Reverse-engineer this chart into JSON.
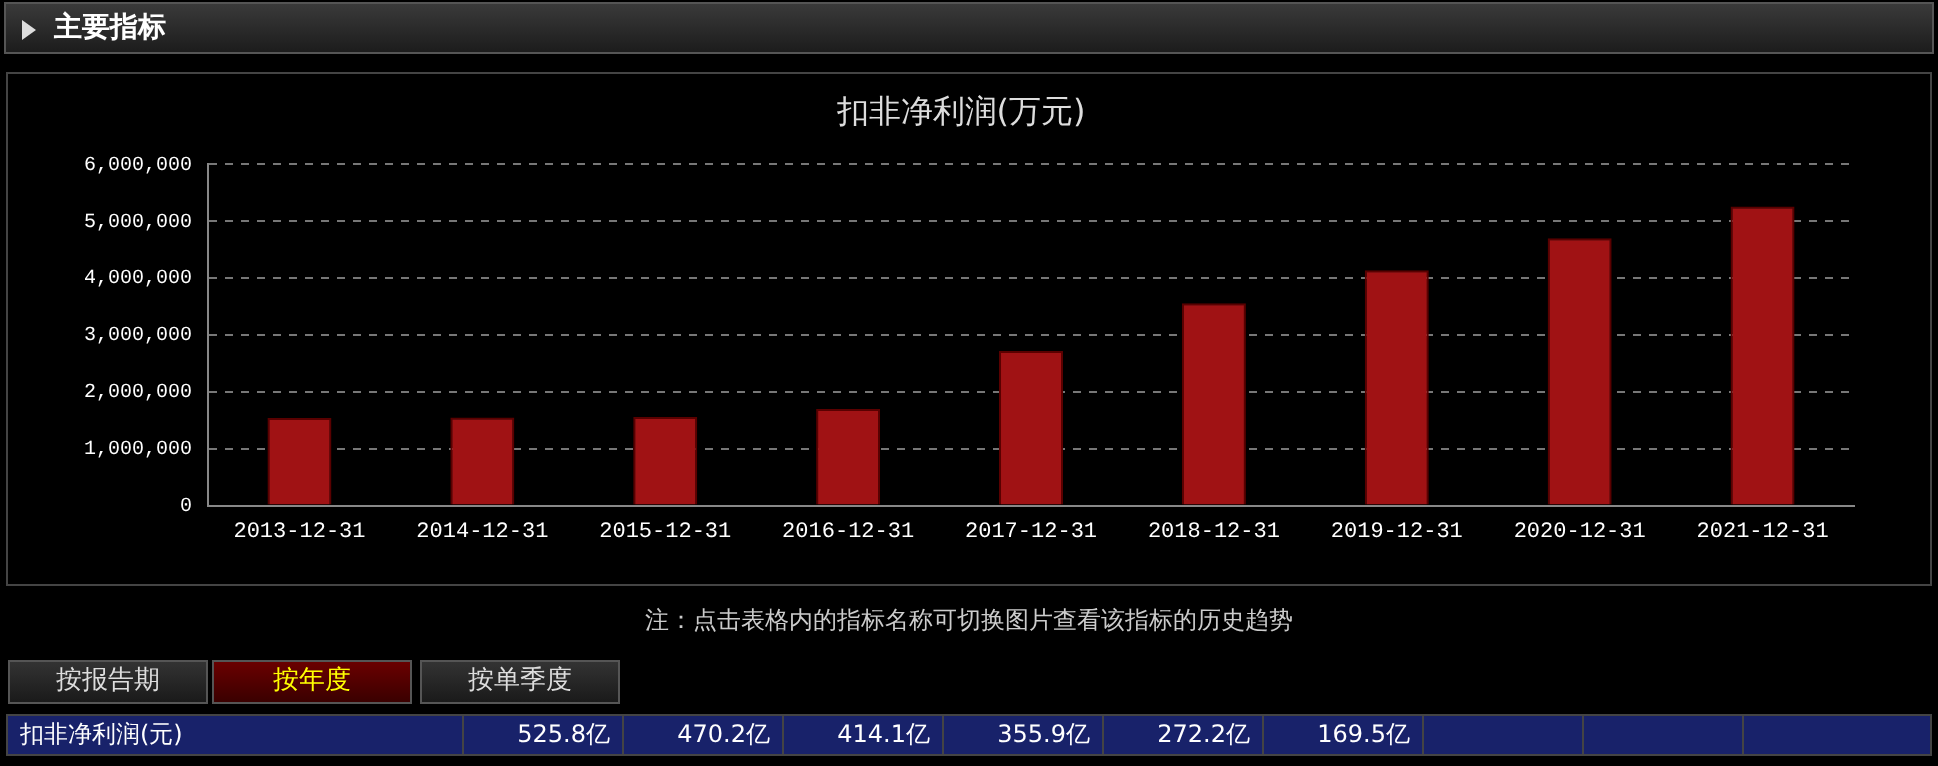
{
  "chart_data": {
    "type": "bar",
    "title": "扣非净利润(万元)",
    "categories": [
      "2013-12-31",
      "2014-12-31",
      "2015-12-31",
      "2016-12-31",
      "2017-12-31",
      "2018-12-31",
      "2019-12-31",
      "2020-12-31",
      "2021-12-31"
    ],
    "values": [
      1540000,
      1550000,
      1560000,
      1700000,
      2720000,
      3560000,
      4140000,
      4700000,
      5260000
    ],
    "color": "#a01214",
    "ylim": [
      0,
      6000000
    ],
    "yticks": [
      0,
      {
        "value": 1000000,
        "label": "1,000,000"
      },
      {
        "value": 2000000,
        "label": "2,000,000"
      },
      {
        "value": 3000000,
        "label": "3,000,000"
      },
      {
        "value": 4000000,
        "label": "4,000,000"
      },
      {
        "value": 5000000,
        "label": "5,000,000"
      },
      {
        "value": 6000000,
        "label": "6,000,000"
      }
    ],
    "grid": "y",
    "annotations": [
      "主要指标",
      "注：点击表格内的指标名称可切换图片查看该指标的历史趋势",
      "按报告期",
      "按年度",
      "按单季度",
      "扣非净利润(元)",
      "525.8亿",
      "470.2亿",
      "414.1亿",
      "355.9亿",
      "272.2亿",
      "169.5亿"
    ]
  }
}
